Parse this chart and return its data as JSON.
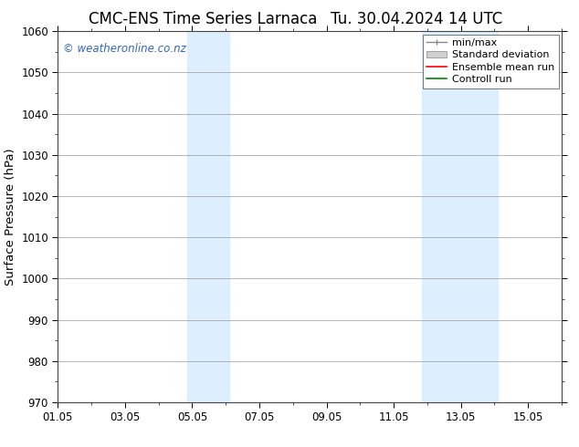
{
  "title_left": "CMC-ENS Time Series Larnaca",
  "title_right": "Tu. 30.04.2024 14 UTC",
  "ylabel": "Surface Pressure (hPa)",
  "ylim": [
    970,
    1060
  ],
  "yticks": [
    970,
    980,
    990,
    1000,
    1010,
    1020,
    1030,
    1040,
    1050,
    1060
  ],
  "xtick_labels": [
    "01.05",
    "03.05",
    "05.05",
    "07.05",
    "09.05",
    "11.05",
    "13.05",
    "15.05"
  ],
  "xtick_positions": [
    0,
    2,
    4,
    6,
    8,
    10,
    12,
    14
  ],
  "xlim": [
    0,
    15
  ],
  "shaded_bands": [
    {
      "x_start": 3.85,
      "x_end": 5.1,
      "color": "#ddeeff"
    },
    {
      "x_start": 10.85,
      "x_end": 13.1,
      "color": "#ddeeff"
    }
  ],
  "watermark_text": "© weatheronline.co.nz",
  "watermark_color": "#3366bb",
  "background_color": "#ffffff",
  "grid_color": "#999999",
  "legend_labels": [
    "min/max",
    "Standard deviation",
    "Ensemble mean run",
    "Controll run"
  ],
  "legend_colors_line": [
    "#888888",
    "#bbbbbb",
    "#ff0000",
    "#008800"
  ],
  "title_fontsize": 12,
  "tick_fontsize": 8.5,
  "label_fontsize": 9.5,
  "watermark_fontsize": 8.5,
  "legend_fontsize": 8
}
